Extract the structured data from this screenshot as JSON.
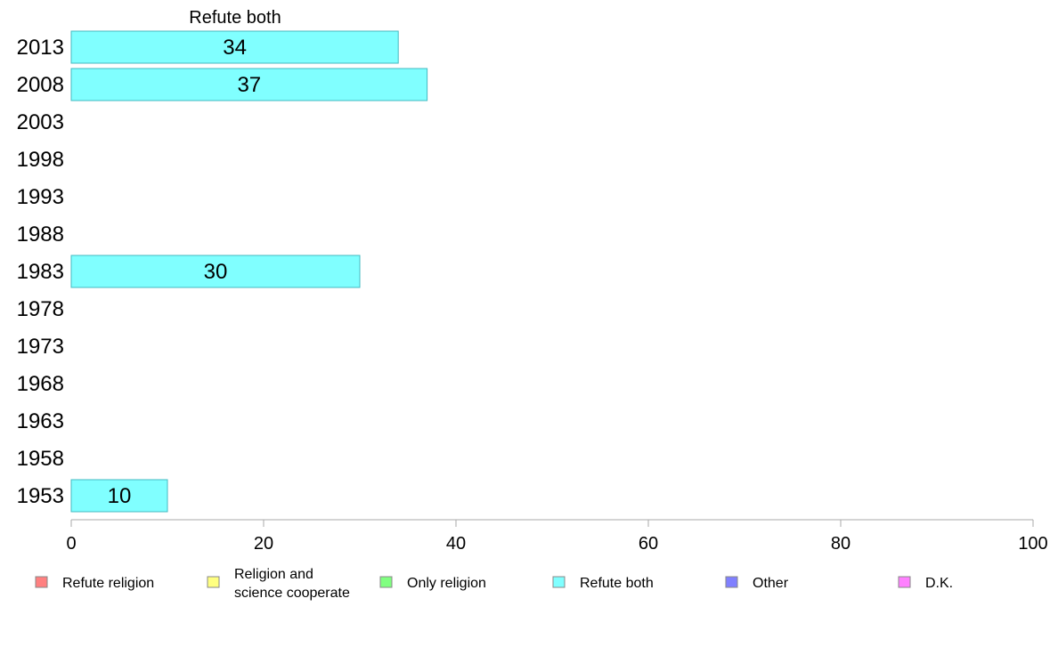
{
  "chart_data": {
    "type": "bar",
    "orientation": "horizontal",
    "title": "Refute both",
    "categories": [
      "2013",
      "2008",
      "2003",
      "1998",
      "1993",
      "1988",
      "1983",
      "1978",
      "1973",
      "1968",
      "1963",
      "1958",
      "1953"
    ],
    "series": [
      {
        "name": "Refute both",
        "color": "#80ffff",
        "values": [
          34,
          37,
          null,
          null,
          null,
          null,
          30,
          null,
          null,
          null,
          null,
          null,
          10
        ]
      }
    ],
    "xlim": [
      0,
      100
    ],
    "xticks": [
      "0",
      "20",
      "40",
      "60",
      "80",
      "100"
    ],
    "xlabel": "",
    "ylabel": "",
    "grid": false,
    "legend": {
      "placement": "bottom",
      "items": [
        {
          "label_lines": [
            "Refute religion"
          ],
          "color": "#ff8080"
        },
        {
          "label_lines": [
            "Religion and",
            "science cooperate"
          ],
          "color": "#ffff80"
        },
        {
          "label_lines": [
            "Only religion"
          ],
          "color": "#80ff80"
        },
        {
          "label_lines": [
            "Refute both"
          ],
          "color": "#80ffff"
        },
        {
          "label_lines": [
            "Other"
          ],
          "color": "#8080ff"
        },
        {
          "label_lines": [
            "D.K."
          ],
          "color": "#ff80ff"
        }
      ]
    }
  }
}
